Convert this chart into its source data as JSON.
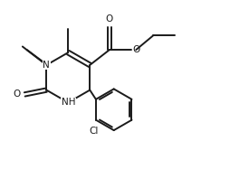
{
  "background_color": "#ffffff",
  "line_color": "#1a1a1a",
  "line_width": 1.4,
  "font_size": 7.5,
  "fig_width": 2.54,
  "fig_height": 1.98,
  "dpi": 100,
  "xlim": [
    0,
    10
  ],
  "ylim": [
    0,
    8
  ]
}
